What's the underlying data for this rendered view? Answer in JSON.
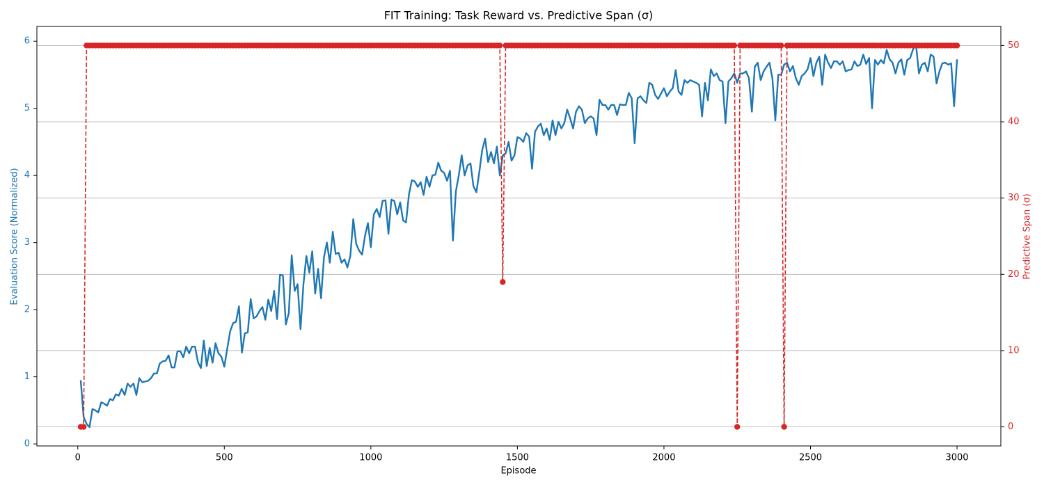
{
  "chart_data": {
    "type": "line",
    "title": "FIT Training: Task Reward vs. Predictive Span (σ)",
    "xlabel": "Episode",
    "ylabel": "Evaluation Score (Normalized)",
    "y2label": "Predictive Span (σ)",
    "x": [
      10,
      20,
      30,
      40,
      50,
      60,
      70,
      80,
      90,
      100,
      110,
      120,
      130,
      140,
      150,
      160,
      170,
      180,
      190,
      200,
      210,
      220,
      230,
      240,
      250,
      260,
      270,
      280,
      290,
      300,
      310,
      320,
      330,
      340,
      350,
      360,
      370,
      380,
      390,
      400,
      410,
      420,
      430,
      440,
      450,
      460,
      470,
      480,
      490,
      500,
      510,
      520,
      530,
      540,
      550,
      560,
      570,
      580,
      590,
      600,
      610,
      620,
      630,
      640,
      650,
      660,
      670,
      680,
      690,
      700,
      710,
      720,
      730,
      740,
      750,
      760,
      770,
      780,
      790,
      800,
      810,
      820,
      830,
      840,
      850,
      860,
      870,
      880,
      890,
      900,
      910,
      920,
      930,
      940,
      950,
      960,
      970,
      980,
      990,
      1000,
      1010,
      1020,
      1030,
      1040,
      1050,
      1060,
      1070,
      1080,
      1090,
      1100,
      1110,
      1120,
      1130,
      1140,
      1150,
      1160,
      1170,
      1180,
      1190,
      1200,
      1210,
      1220,
      1230,
      1240,
      1250,
      1260,
      1270,
      1280,
      1290,
      1300,
      1310,
      1320,
      1330,
      1340,
      1350,
      1360,
      1370,
      1380,
      1390,
      1400,
      1410,
      1420,
      1430,
      1440,
      1450,
      1460,
      1470,
      1480,
      1490,
      1500,
      1510,
      1520,
      1530,
      1540,
      1550,
      1560,
      1570,
      1580,
      1590,
      1600,
      1610,
      1620,
      1630,
      1640,
      1650,
      1660,
      1670,
      1680,
      1690,
      1700,
      1710,
      1720,
      1730,
      1740,
      1750,
      1760,
      1770,
      1780,
      1790,
      1800,
      1810,
      1820,
      1830,
      1840,
      1850,
      1860,
      1870,
      1880,
      1890,
      1900,
      1910,
      1920,
      1930,
      1940,
      1950,
      1960,
      1970,
      1980,
      1990,
      2000,
      2010,
      2020,
      2030,
      2040,
      2050,
      2060,
      2070,
      2080,
      2090,
      2100,
      2110,
      2120,
      2130,
      2140,
      2150,
      2160,
      2170,
      2180,
      2190,
      2200,
      2210,
      2220,
      2230,
      2240,
      2250,
      2260,
      2270,
      2280,
      2290,
      2300,
      2310,
      2320,
      2330,
      2340,
      2350,
      2360,
      2370,
      2380,
      2390,
      2400,
      2410,
      2420,
      2430,
      2440,
      2450,
      2460,
      2470,
      2480,
      2490,
      2500,
      2510,
      2520,
      2530,
      2540,
      2550,
      2560,
      2570,
      2580,
      2590,
      2600,
      2610,
      2620,
      2630,
      2640,
      2650,
      2660,
      2670,
      2680,
      2690,
      2700,
      2710,
      2720,
      2730,
      2740,
      2750,
      2760,
      2770,
      2780,
      2790,
      2800,
      2810,
      2820,
      2830,
      2840,
      2850,
      2860,
      2870,
      2880,
      2890,
      2900,
      2910,
      2920,
      2930,
      2940,
      2950,
      2960,
      2970,
      2980,
      2990,
      3000
    ],
    "series": [
      {
        "color": "#1f77b4",
        "axis": "y",
        "linestyle": "solid",
        "values": [
          0.95,
          0.4,
          0.3,
          0.25,
          0.52,
          0.5,
          0.47,
          0.62,
          0.6,
          0.57,
          0.67,
          0.65,
          0.74,
          0.72,
          0.82,
          0.73,
          0.9,
          0.85,
          0.9,
          0.73,
          0.98,
          0.92,
          0.93,
          0.94,
          0.98,
          1.05,
          1.05,
          1.2,
          1.23,
          1.24,
          1.32,
          1.14,
          1.14,
          1.38,
          1.38,
          1.29,
          1.45,
          1.35,
          1.45,
          1.45,
          1.22,
          1.13,
          1.54,
          1.16,
          1.43,
          1.21,
          1.5,
          1.35,
          1.3,
          1.15,
          1.42,
          1.68,
          1.8,
          1.82,
          2.05,
          1.36,
          1.65,
          1.66,
          2.16,
          1.87,
          1.9,
          1.98,
          2.04,
          1.85,
          2.15,
          1.98,
          2.28,
          1.86,
          2.52,
          2.51,
          1.78,
          1.95,
          2.81,
          2.28,
          2.38,
          1.71,
          2.38,
          2.8,
          2.55,
          2.87,
          2.24,
          2.61,
          2.17,
          2.78,
          3.0,
          2.7,
          3.16,
          2.83,
          2.85,
          2.7,
          2.75,
          2.63,
          2.8,
          3.35,
          2.98,
          2.88,
          2.82,
          3.1,
          3.29,
          2.93,
          3.42,
          3.5,
          3.38,
          3.62,
          3.63,
          3.13,
          3.64,
          3.62,
          3.42,
          3.6,
          3.33,
          3.3,
          3.72,
          3.93,
          3.91,
          3.83,
          3.9,
          3.71,
          3.98,
          3.83,
          4.0,
          4.01,
          4.19,
          4.07,
          4.04,
          3.92,
          4.07,
          3.03,
          3.76,
          4.0,
          4.3,
          4.0,
          4.15,
          4.18,
          3.84,
          3.75,
          4.05,
          4.38,
          4.55,
          4.2,
          4.35,
          4.18,
          4.43,
          4.0,
          4.3,
          4.33,
          4.5,
          4.22,
          4.3,
          4.57,
          4.55,
          4.5,
          4.63,
          4.58,
          4.1,
          4.65,
          4.73,
          4.77,
          4.6,
          4.7,
          4.53,
          4.82,
          4.6,
          4.8,
          4.7,
          4.78,
          4.98,
          4.85,
          4.7,
          4.95,
          5.03,
          4.98,
          4.78,
          4.85,
          4.88,
          4.85,
          4.6,
          5.13,
          5.05,
          5.05,
          4.98,
          5.05,
          5.05,
          4.9,
          5.06,
          5.05,
          5.05,
          5.23,
          5.15,
          4.48,
          5.15,
          5.18,
          5.12,
          5.08,
          5.38,
          5.35,
          5.2,
          5.14,
          5.22,
          5.3,
          5.18,
          5.25,
          5.3,
          5.57,
          5.25,
          5.2,
          5.42,
          5.38,
          5.42,
          5.4,
          5.38,
          5.35,
          4.88,
          5.38,
          5.12,
          5.58,
          5.48,
          5.52,
          5.42,
          5.4,
          4.78,
          5.4,
          5.45,
          5.52,
          5.38,
          5.52,
          5.52,
          5.55,
          5.45,
          4.95,
          5.62,
          5.68,
          5.42,
          5.55,
          5.62,
          5.68,
          5.45,
          4.82,
          5.5,
          5.5,
          5.65,
          5.68,
          5.55,
          5.63,
          5.45,
          5.35,
          5.48,
          5.52,
          5.58,
          5.75,
          5.48,
          5.68,
          5.77,
          5.35,
          5.8,
          5.68,
          5.6,
          5.7,
          5.7,
          5.65,
          5.7,
          5.55,
          5.57,
          5.58,
          5.7,
          5.63,
          5.65,
          5.8,
          5.66,
          5.75,
          5.0,
          5.72,
          5.65,
          5.72,
          5.67,
          5.87,
          5.73,
          5.68,
          5.52,
          5.68,
          5.73,
          5.5,
          5.72,
          5.75,
          5.88,
          5.95,
          5.52,
          5.65,
          5.68,
          5.55,
          5.8,
          5.77,
          5.37,
          5.55,
          5.67,
          5.68,
          5.65,
          5.67,
          5.03,
          5.73
        ]
      },
      {
        "color": "#d62728",
        "axis": "y2",
        "linestyle": "dashed",
        "marker": "circle",
        "values": [
          0,
          0,
          50,
          50,
          50,
          50,
          50,
          50,
          50,
          50,
          50,
          50,
          50,
          50,
          50,
          50,
          50,
          50,
          50,
          50,
          50,
          50,
          50,
          50,
          50,
          50,
          50,
          50,
          50,
          50,
          50,
          50,
          50,
          50,
          50,
          50,
          50,
          50,
          50,
          50,
          50,
          50,
          50,
          50,
          50,
          50,
          50,
          50,
          50,
          50,
          50,
          50,
          50,
          50,
          50,
          50,
          50,
          50,
          50,
          50,
          50,
          50,
          50,
          50,
          50,
          50,
          50,
          50,
          50,
          50,
          50,
          50,
          50,
          50,
          50,
          50,
          50,
          50,
          50,
          50,
          50,
          50,
          50,
          50,
          50,
          50,
          50,
          50,
          50,
          50,
          50,
          50,
          50,
          50,
          50,
          50,
          50,
          50,
          50,
          50,
          50,
          50,
          50,
          50,
          50,
          50,
          50,
          50,
          50,
          50,
          50,
          50,
          50,
          50,
          50,
          50,
          50,
          50,
          50,
          50,
          50,
          50,
          50,
          50,
          50,
          50,
          50,
          50,
          50,
          50,
          50,
          50,
          50,
          50,
          50,
          50,
          50,
          50,
          50,
          50,
          50,
          50,
          50,
          50,
          19,
          50,
          50,
          50,
          50,
          50,
          50,
          50,
          50,
          50,
          50,
          50,
          50,
          50,
          50,
          50,
          50,
          50,
          50,
          50,
          50,
          50,
          50,
          50,
          50,
          50,
          50,
          50,
          50,
          50,
          50,
          50,
          50,
          50,
          50,
          50,
          50,
          50,
          50,
          50,
          50,
          50,
          50,
          50,
          50,
          50,
          50,
          50,
          50,
          50,
          50,
          50,
          50,
          50,
          50,
          50,
          50,
          50,
          50,
          50,
          50,
          50,
          50,
          50,
          50,
          50,
          50,
          50,
          50,
          50,
          50,
          50,
          50,
          50,
          50,
          50,
          50,
          50,
          50,
          50,
          0,
          50,
          50,
          50,
          50,
          50,
          50,
          50,
          50,
          50,
          50,
          50,
          50,
          50,
          50,
          50,
          0,
          50,
          50,
          50,
          50,
          50,
          50,
          50,
          50,
          50,
          50,
          50,
          50,
          50,
          50,
          50,
          50,
          50,
          50,
          50,
          50,
          50,
          50,
          50,
          50,
          50,
          50,
          50,
          50,
          50,
          50,
          50,
          50,
          50,
          50,
          50,
          50,
          50,
          50,
          50,
          50,
          50,
          50,
          50,
          50,
          50,
          50,
          50,
          50,
          50,
          50,
          50,
          50,
          50,
          50,
          50,
          50,
          50,
          50,
          50
        ]
      }
    ],
    "xlim": [
      -139.5,
      3149.5
    ],
    "ylim": [
      -0.03,
      6.22
    ],
    "y2lim": [
      -2.5,
      52.5
    ],
    "xticks": [
      0,
      500,
      1000,
      1500,
      2000,
      2500,
      3000
    ],
    "yticks": [
      0,
      1,
      2,
      3,
      4,
      5,
      6
    ],
    "y2ticks": [
      0,
      10,
      20,
      30,
      40,
      50
    ],
    "grid": "y2"
  }
}
